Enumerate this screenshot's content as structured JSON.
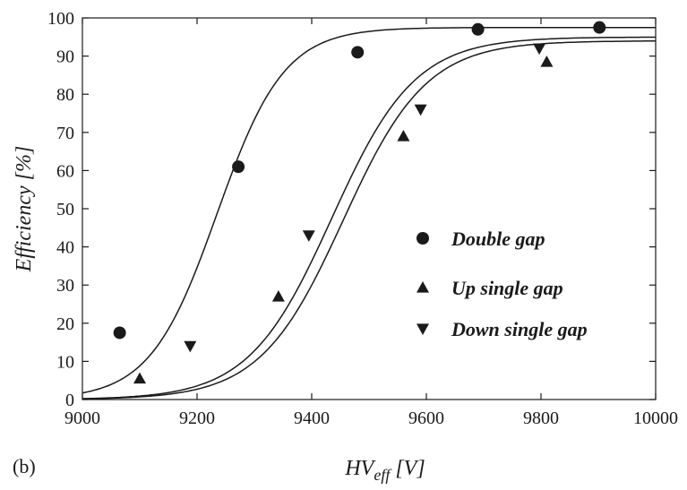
{
  "chart_data": {
    "type": "scatter",
    "panel_label": "(b)",
    "xlabel": {
      "main": "HV",
      "sub": "eff",
      "unit": " [V]"
    },
    "ylabel": "Efficiency [%]",
    "xlim": [
      9000,
      10000
    ],
    "ylim": [
      0,
      100
    ],
    "xticks": [
      "9000",
      "9200",
      "9400",
      "9600",
      "9800",
      "10000"
    ],
    "yticks": [
      "0",
      "10",
      "20",
      "30",
      "40",
      "50",
      "60",
      "70",
      "80",
      "90",
      "100"
    ],
    "grid": false,
    "legend_position": "center-right",
    "series": [
      {
        "name": "Double gap",
        "marker": "circle",
        "points": [
          [
            9065,
            17.5
          ],
          [
            9272,
            61
          ],
          [
            9480,
            91
          ],
          [
            9690,
            97
          ],
          [
            9902,
            97.5
          ]
        ],
        "fit": {
          "max": 97.5,
          "x50": 9235,
          "k": 0.0171
        }
      },
      {
        "name": "Up single gap",
        "marker": "triangle-up",
        "points": [
          [
            9100,
            5.5
          ],
          [
            9342,
            27
          ],
          [
            9560,
            69
          ],
          [
            9810,
            88.5
          ]
        ],
        "fit": {
          "max": 94,
          "x50": 9455,
          "k": 0.0138
        }
      },
      {
        "name": "Down single gap",
        "marker": "triangle-down",
        "points": [
          [
            9188,
            14
          ],
          [
            9395,
            43
          ],
          [
            9590,
            76
          ],
          [
            9797,
            92
          ]
        ],
        "fit": {
          "max": 95,
          "x50": 9435,
          "k": 0.0138
        }
      }
    ]
  }
}
